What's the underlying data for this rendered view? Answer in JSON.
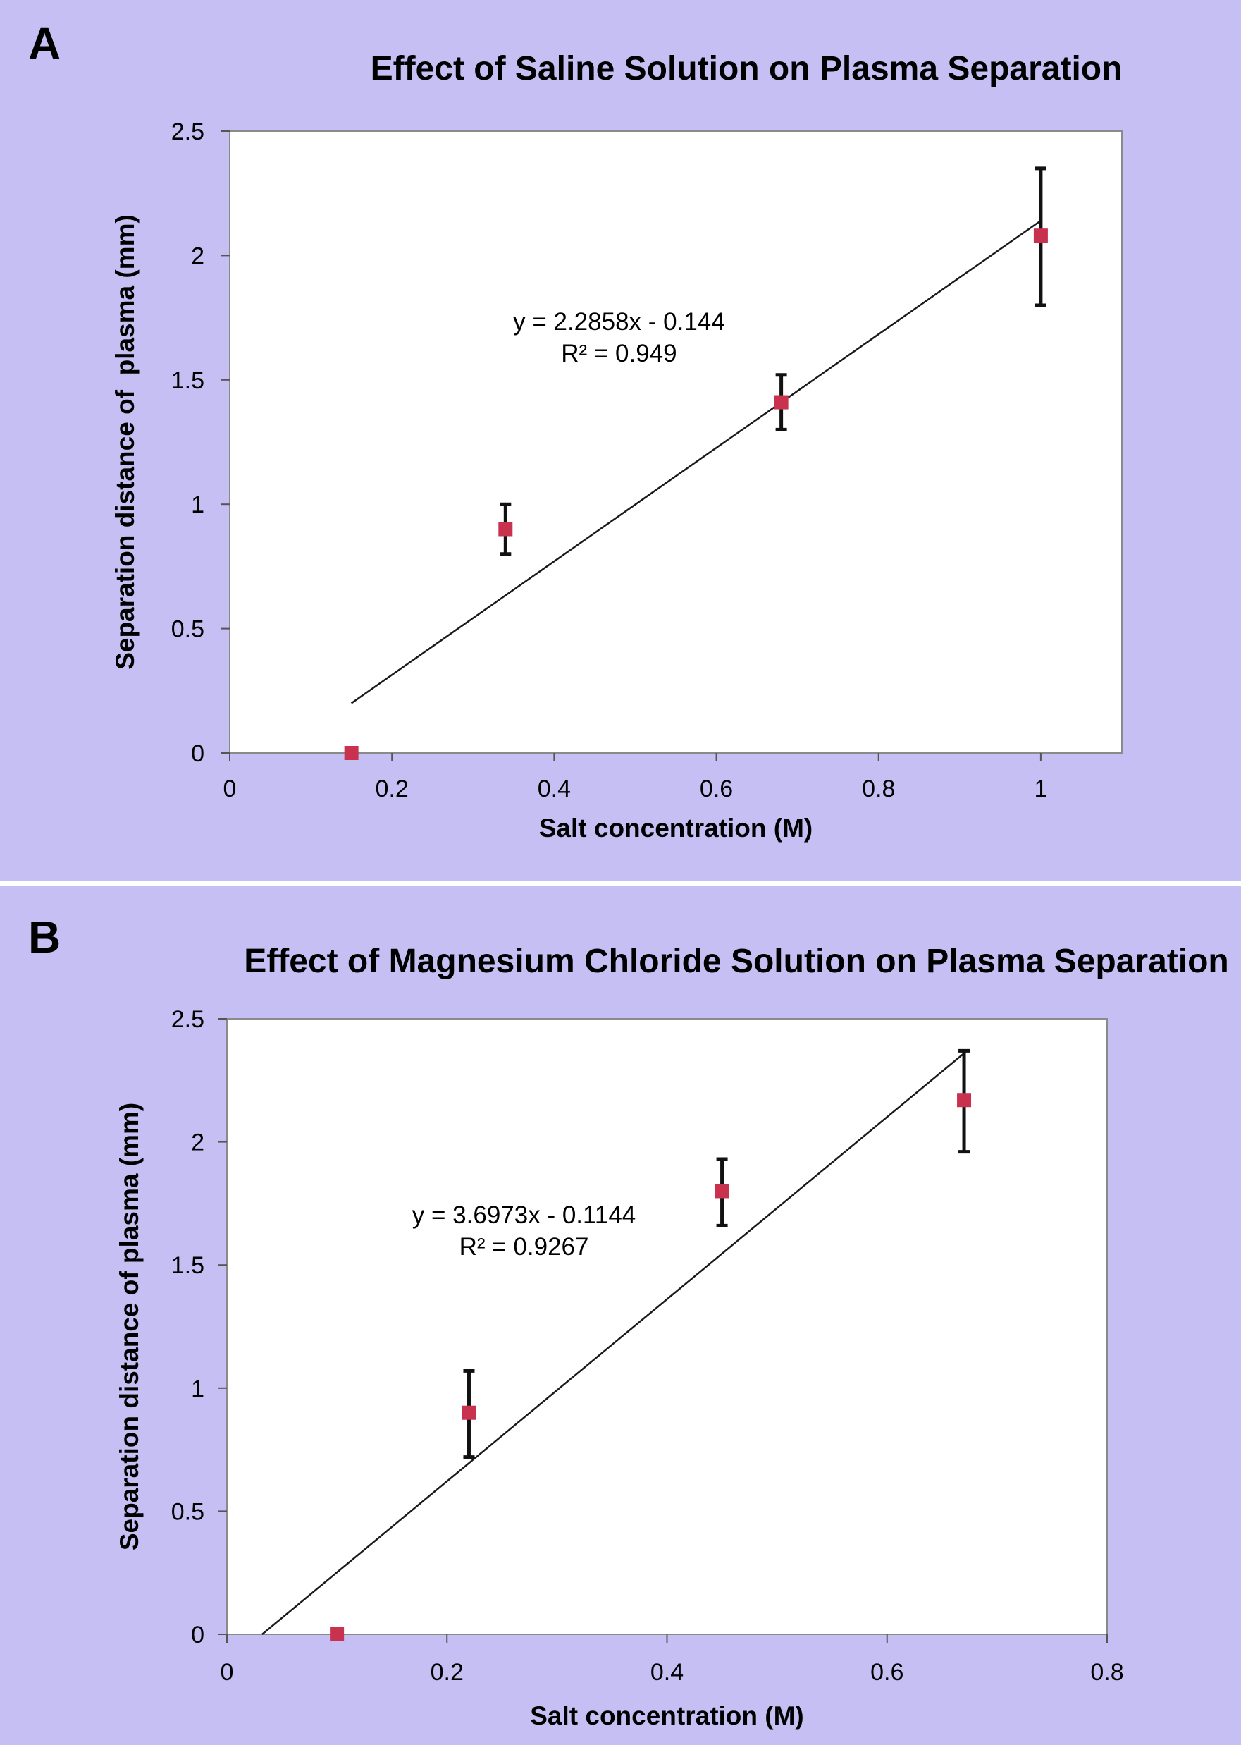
{
  "chart_data": [
    {
      "id": "A",
      "type": "scatter",
      "panel_label": "A",
      "title": "Effect of Saline Solution on Plasma Separation",
      "xlabel": "Salt concentration (M)",
      "ylabel": "Separation distance of  plasma (mm)",
      "xlim": [
        0,
        1.1
      ],
      "ylim": [
        0,
        2.5
      ],
      "xticks": [
        0,
        0.2,
        0.4,
        0.6,
        0.8,
        1
      ],
      "xtick_labels": [
        "0",
        "0.2",
        "0.4",
        "0.6",
        "0.8",
        "1"
      ],
      "yticks": [
        0,
        0.5,
        1,
        1.5,
        2,
        2.5
      ],
      "ytick_labels": [
        "0",
        "0.5",
        "1",
        "1.5",
        "2",
        "2.5"
      ],
      "grid": false,
      "marker_color": "#c8324f",
      "series": [
        {
          "name": "Separation distance",
          "x": [
            0.15,
            0.34,
            0.68,
            1.0
          ],
          "y": [
            0.0,
            0.9,
            1.41,
            2.08
          ],
          "err_low": [
            null,
            0.8,
            1.3,
            1.8
          ],
          "err_high": [
            null,
            1.0,
            1.52,
            2.35
          ]
        }
      ],
      "trendline": {
        "x": [
          0.15,
          1.0
        ],
        "y": [
          0.2,
          2.14
        ]
      },
      "equation": "y = 2.2858x - 0.144",
      "r_squared": "R² = 0.949",
      "annotation_at": [
        0.48,
        1.7
      ]
    },
    {
      "id": "B",
      "type": "scatter",
      "panel_label": "B",
      "title": "Effect of Magnesium Chloride Solution on  Plasma Separation",
      "xlabel": "Salt concentration (M)",
      "ylabel": "Separation distance of plasma (mm)",
      "xlim": [
        0,
        0.8
      ],
      "ylim": [
        0,
        2.5
      ],
      "xticks": [
        0,
        0.2,
        0.4,
        0.6,
        0.8
      ],
      "xtick_labels": [
        "0",
        "0.2",
        "0.4",
        "0.6",
        "0.8"
      ],
      "yticks": [
        0,
        0.5,
        1,
        1.5,
        2,
        2.5
      ],
      "ytick_labels": [
        "0",
        "0.5",
        "1",
        "1.5",
        "2",
        "2.5"
      ],
      "grid": false,
      "marker_color": "#c8324f",
      "series": [
        {
          "name": "Separation distance",
          "x": [
            0.1,
            0.22,
            0.45,
            0.67
          ],
          "y": [
            0.0,
            0.9,
            1.8,
            2.17
          ],
          "err_low": [
            null,
            0.72,
            1.66,
            1.96
          ],
          "err_high": [
            null,
            1.07,
            1.93,
            2.37
          ]
        }
      ],
      "trendline": {
        "x": [
          0.032,
          0.67
        ],
        "y": [
          0.0,
          2.36
        ]
      },
      "equation": "y = 3.6973x - 0.1144",
      "r_squared": "R² = 0.9267",
      "annotation_at": [
        0.27,
        1.67
      ]
    }
  ]
}
